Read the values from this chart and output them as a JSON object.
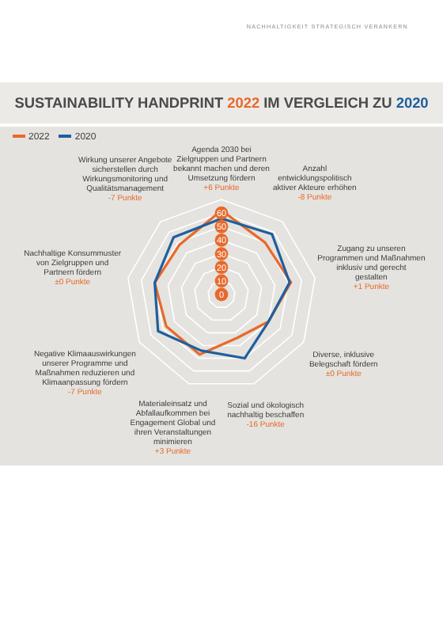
{
  "chart_data": {
    "type": "radar",
    "title": "SUSTAINABILITY HANDPRINT 2022 IM VERGLEICH ZU 2020",
    "subtitle": "NACHHALTIGKEIT STRATEGISCH VERANKERN",
    "categories": [
      "Agenda 2030 bei Zielgruppen und Partnern bekannt machen und deren Umsetzung fördern",
      "Anzahl entwicklungspolitisch aktiver Akteure erhöhen",
      "Zugang zu unseren Programmen und Maßnahmen inklusiv und gerecht gestalten",
      "Diverse, inklusive Belegschaft fördern",
      "Sozial und ökologisch nachhaltig beschaffen",
      "Materialeinsatz und Abfallaufkommen bei Engagement Global und ihren Veranstaltungen minimieren",
      "Negative Klimaauswirkungen unserer Programme und Maßnahmen reduzieren und Klimaanpassung fördern",
      "Nachhaltige Konsummuster von Zielgruppen und Partnern fördern",
      "Wirkung unserer Angebote sicherstellen durch Wirkungsmonitoring und Qualitätsmanagement"
    ],
    "series": [
      {
        "name": "2022",
        "color": "#e8692a",
        "values": [
          62,
          50,
          52,
          40,
          34,
          47,
          47,
          50,
          48
        ]
      },
      {
        "name": "2020",
        "color": "#1f5f9e",
        "values": [
          56,
          58,
          51,
          40,
          50,
          44,
          54,
          50,
          55
        ]
      }
    ],
    "legend": "top left",
    "ylim": [
      0,
      70
    ],
    "yticks": [
      0,
      10,
      20,
      30,
      40,
      50,
      60
    ],
    "grid": true,
    "annotations": [
      {
        "text": "+6 Punkte",
        "x": "Agenda 2030 bei Zielgruppen und Partnern bekannt machen und deren Umsetzung fördern"
      },
      {
        "text": "-8 Punkte",
        "x": "Anzahl entwicklungspolitisch aktiver Akteure erhöhen"
      },
      {
        "text": "+1 Punkte",
        "x": "Zugang zu unseren Programmen und Maßnahmen inklusiv und gerecht gestalten"
      },
      {
        "text": "±0 Punkte",
        "x": "Diverse, inklusive Belegschaft fördern"
      },
      {
        "text": "-16 Punkte",
        "x": "Sozial und ökologisch nachhaltig beschaffen"
      },
      {
        "text": "+3 Punkte",
        "x": "Materialeinsatz und Abfallaufkommen bei Engagement Global und ihren Veranstaltungen minimieren"
      },
      {
        "text": "-7 Punkte",
        "x": "Negative Klimaauswirkungen unserer Programme und Maßnahmen reduzieren und Klimaanpassung fördern"
      },
      {
        "text": "±0 Punkte",
        "x": "Nachhaltige Konsummuster von Zielgruppen und Partnern fördern"
      },
      {
        "text": "-7 Punkte",
        "x": "Wirkung unserer Angebote sicherstellen durch Wirkungsmonitoring und Qualitätsmanagement"
      }
    ]
  }
}
